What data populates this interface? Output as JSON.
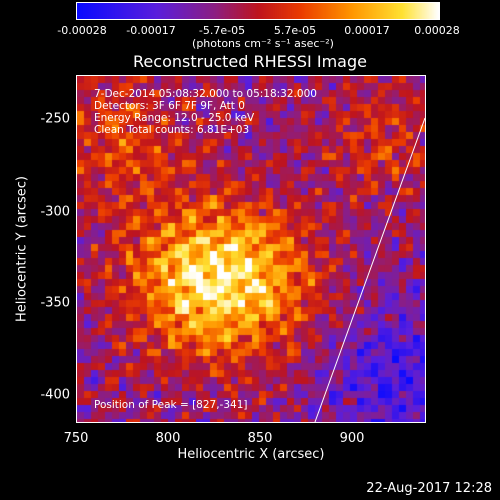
{
  "colorbar": {
    "ticks": [
      "-0.00028",
      "-0.00017",
      "-5.7e-05",
      "5.7e-05",
      "0.00017",
      "0.00028"
    ],
    "units": "(photons cm⁻² s⁻¹ asec⁻²)"
  },
  "title": "Reconstructed RHESSI Image",
  "info": {
    "time": "7-Dec-2014 05:08:32.000 to 05:18:32.000",
    "detectors": "Detectors: 3F 6F 7F 9F, Att 0",
    "energy": "Energy Range: 12.0 - 25.0 keV",
    "clean": "Clean    Total counts: 6.81E+03",
    "peak": "Position of Peak = [827,-341]"
  },
  "axes": {
    "xlabel": "Heliocentric X (arcsec)",
    "ylabel": "Heliocentric Y (arcsec)",
    "xticks": [
      "750",
      "800",
      "850",
      "900"
    ],
    "yticks": [
      "-250",
      "-300",
      "-350",
      "-400"
    ],
    "xrange": [
      750,
      940
    ],
    "yrange": [
      -420,
      -232
    ]
  },
  "peak": {
    "x": 827,
    "y": -341
  },
  "colormap": "red-temperature (blue-purple-red-orange-yellow-white)",
  "timestamp": "22-Aug-2017 12:28"
}
